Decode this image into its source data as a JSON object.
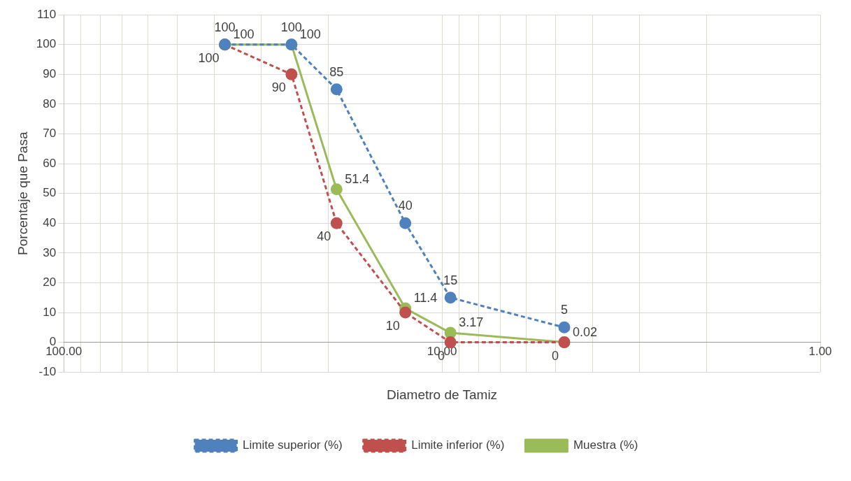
{
  "chart_data": {
    "type": "line",
    "xlabel": "Diametro de Tamiz",
    "ylabel": "Porcentaje que Pasa",
    "x": [
      37.5,
      25,
      19,
      12.5,
      9.5,
      4.75
    ],
    "series": [
      {
        "name": "Limite superior (%)",
        "color": "#4f81bd",
        "line_style": "dashed",
        "values": [
          100,
          100,
          85,
          40,
          15,
          5
        ]
      },
      {
        "name": "Limite inferior (%)",
        "color": "#c0504d",
        "line_style": "dashed",
        "values": [
          100,
          90,
          40,
          10,
          0,
          0
        ]
      },
      {
        "name": "Muestra (%)",
        "color": "#9bbb59",
        "line_style": "solid",
        "values": [
          100,
          100,
          51.4,
          11.4,
          3.17,
          0.02
        ]
      }
    ],
    "log": "x",
    "xlim": [
      100,
      1
    ],
    "xticks": [
      {
        "value": 100,
        "label": "100.00"
      },
      {
        "value": 90,
        "label": null
      },
      {
        "value": 80,
        "label": null
      },
      {
        "value": 70,
        "label": null
      },
      {
        "value": 60,
        "label": null
      },
      {
        "value": 50,
        "label": null
      },
      {
        "value": 40,
        "label": null
      },
      {
        "value": 30,
        "label": null
      },
      {
        "value": 20,
        "label": null
      },
      {
        "value": 10,
        "label": "10.00"
      },
      {
        "value": 9,
        "label": null
      },
      {
        "value": 8,
        "label": null
      },
      {
        "value": 7,
        "label": null
      },
      {
        "value": 6,
        "label": null
      },
      {
        "value": 5,
        "label": null
      },
      {
        "value": 4,
        "label": null
      },
      {
        "value": 3,
        "label": null
      },
      {
        "value": 2,
        "label": null
      },
      {
        "value": 1,
        "label": "1.00"
      }
    ],
    "ylim": [
      -10,
      110
    ],
    "yticks": [
      -10,
      0,
      10,
      20,
      30,
      40,
      50,
      60,
      70,
      80,
      90,
      100,
      110
    ],
    "grid": true,
    "legend": "bottom",
    "marker": "circle",
    "data_labels": true
  }
}
